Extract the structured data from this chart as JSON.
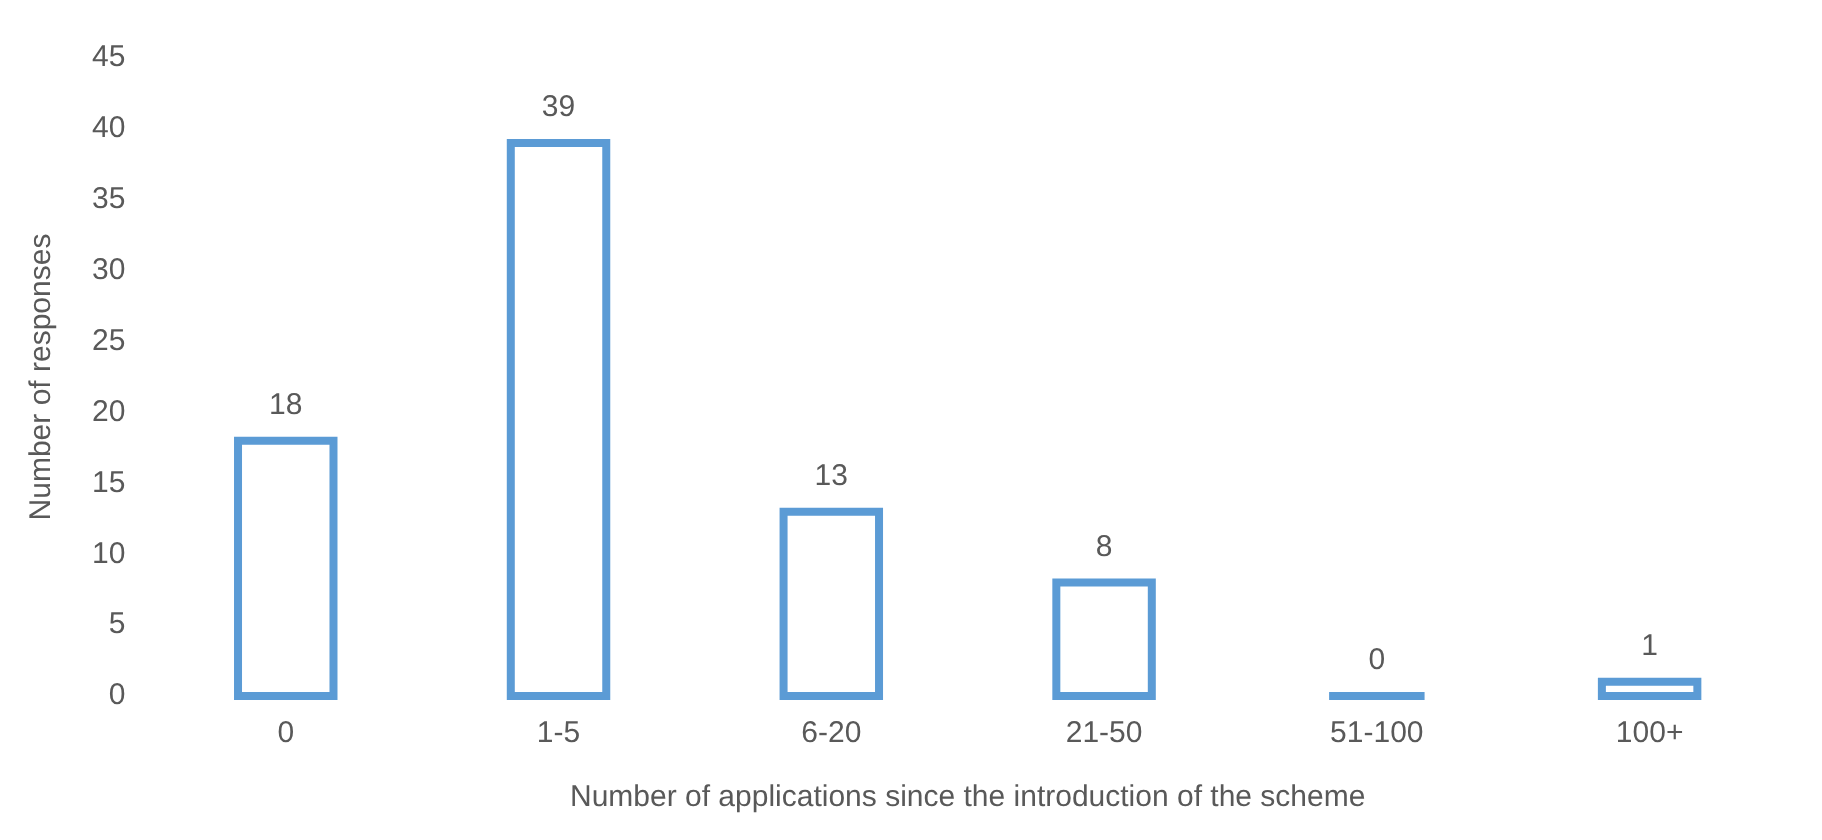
{
  "chart_data": {
    "type": "bar",
    "xlabel": "Number of applications since the introduction of the scheme",
    "ylabel": "Number of responses",
    "categories": [
      "0",
      "1-5",
      "6-20",
      "21-50",
      "51-100",
      "100+"
    ],
    "values": [
      18,
      39,
      13,
      8,
      0,
      1
    ],
    "color": "#5b9bd5",
    "ylim": [
      0,
      45
    ],
    "yticks": [
      0,
      5,
      10,
      15,
      20,
      25,
      30,
      35,
      40,
      45
    ],
    "grid": false,
    "legend": false,
    "data_labels": true
  }
}
